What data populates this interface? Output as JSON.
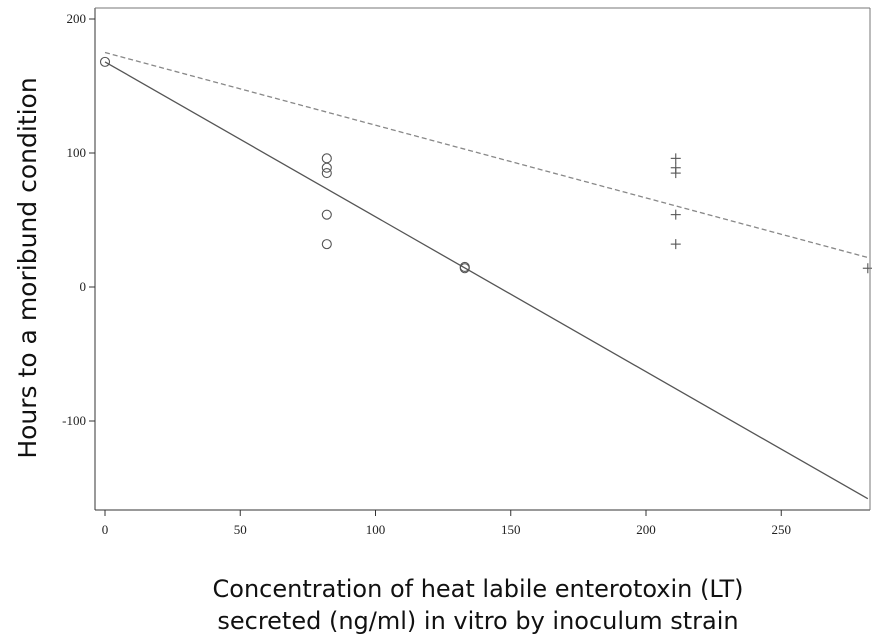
{
  "chart_data": {
    "type": "scatter",
    "title": "",
    "xlabel_line1": "Concentration of heat labile enterotoxin (LT)",
    "xlabel_line2": "secreted (ng/ml) in vitro by inoculum strain",
    "ylabel": "Hours to a moribund condition",
    "xlim": [
      -4,
      285
    ],
    "ylim": [
      -168,
      205
    ],
    "xticks": [
      0,
      50,
      100,
      150,
      200,
      250
    ],
    "yticks": [
      200,
      100,
      0,
      -100
    ],
    "ytick_labels": [
      "200",
      "100",
      "0",
      "-100"
    ],
    "grid": false,
    "series": [
      {
        "marker": "circle",
        "color": "#555555",
        "points": [
          [
            0,
            168
          ],
          [
            82,
            96
          ],
          [
            82,
            89
          ],
          [
            82,
            85
          ],
          [
            82,
            54
          ],
          [
            82,
            32
          ],
          [
            133,
            15
          ],
          [
            133,
            14
          ]
        ]
      },
      {
        "marker": "plus",
        "color": "#555555",
        "points": [
          [
            211,
            96
          ],
          [
            211,
            89
          ],
          [
            211,
            85
          ],
          [
            211,
            54
          ],
          [
            211,
            32
          ],
          [
            282,
            14
          ]
        ]
      }
    ],
    "fit_lines": [
      {
        "style": "solid",
        "color": "#555555",
        "x": [
          0,
          282
        ],
        "y": [
          168,
          -158
        ]
      },
      {
        "style": "dashed",
        "color": "#888888",
        "x": [
          0,
          282
        ],
        "y": [
          175,
          22
        ]
      }
    ]
  }
}
